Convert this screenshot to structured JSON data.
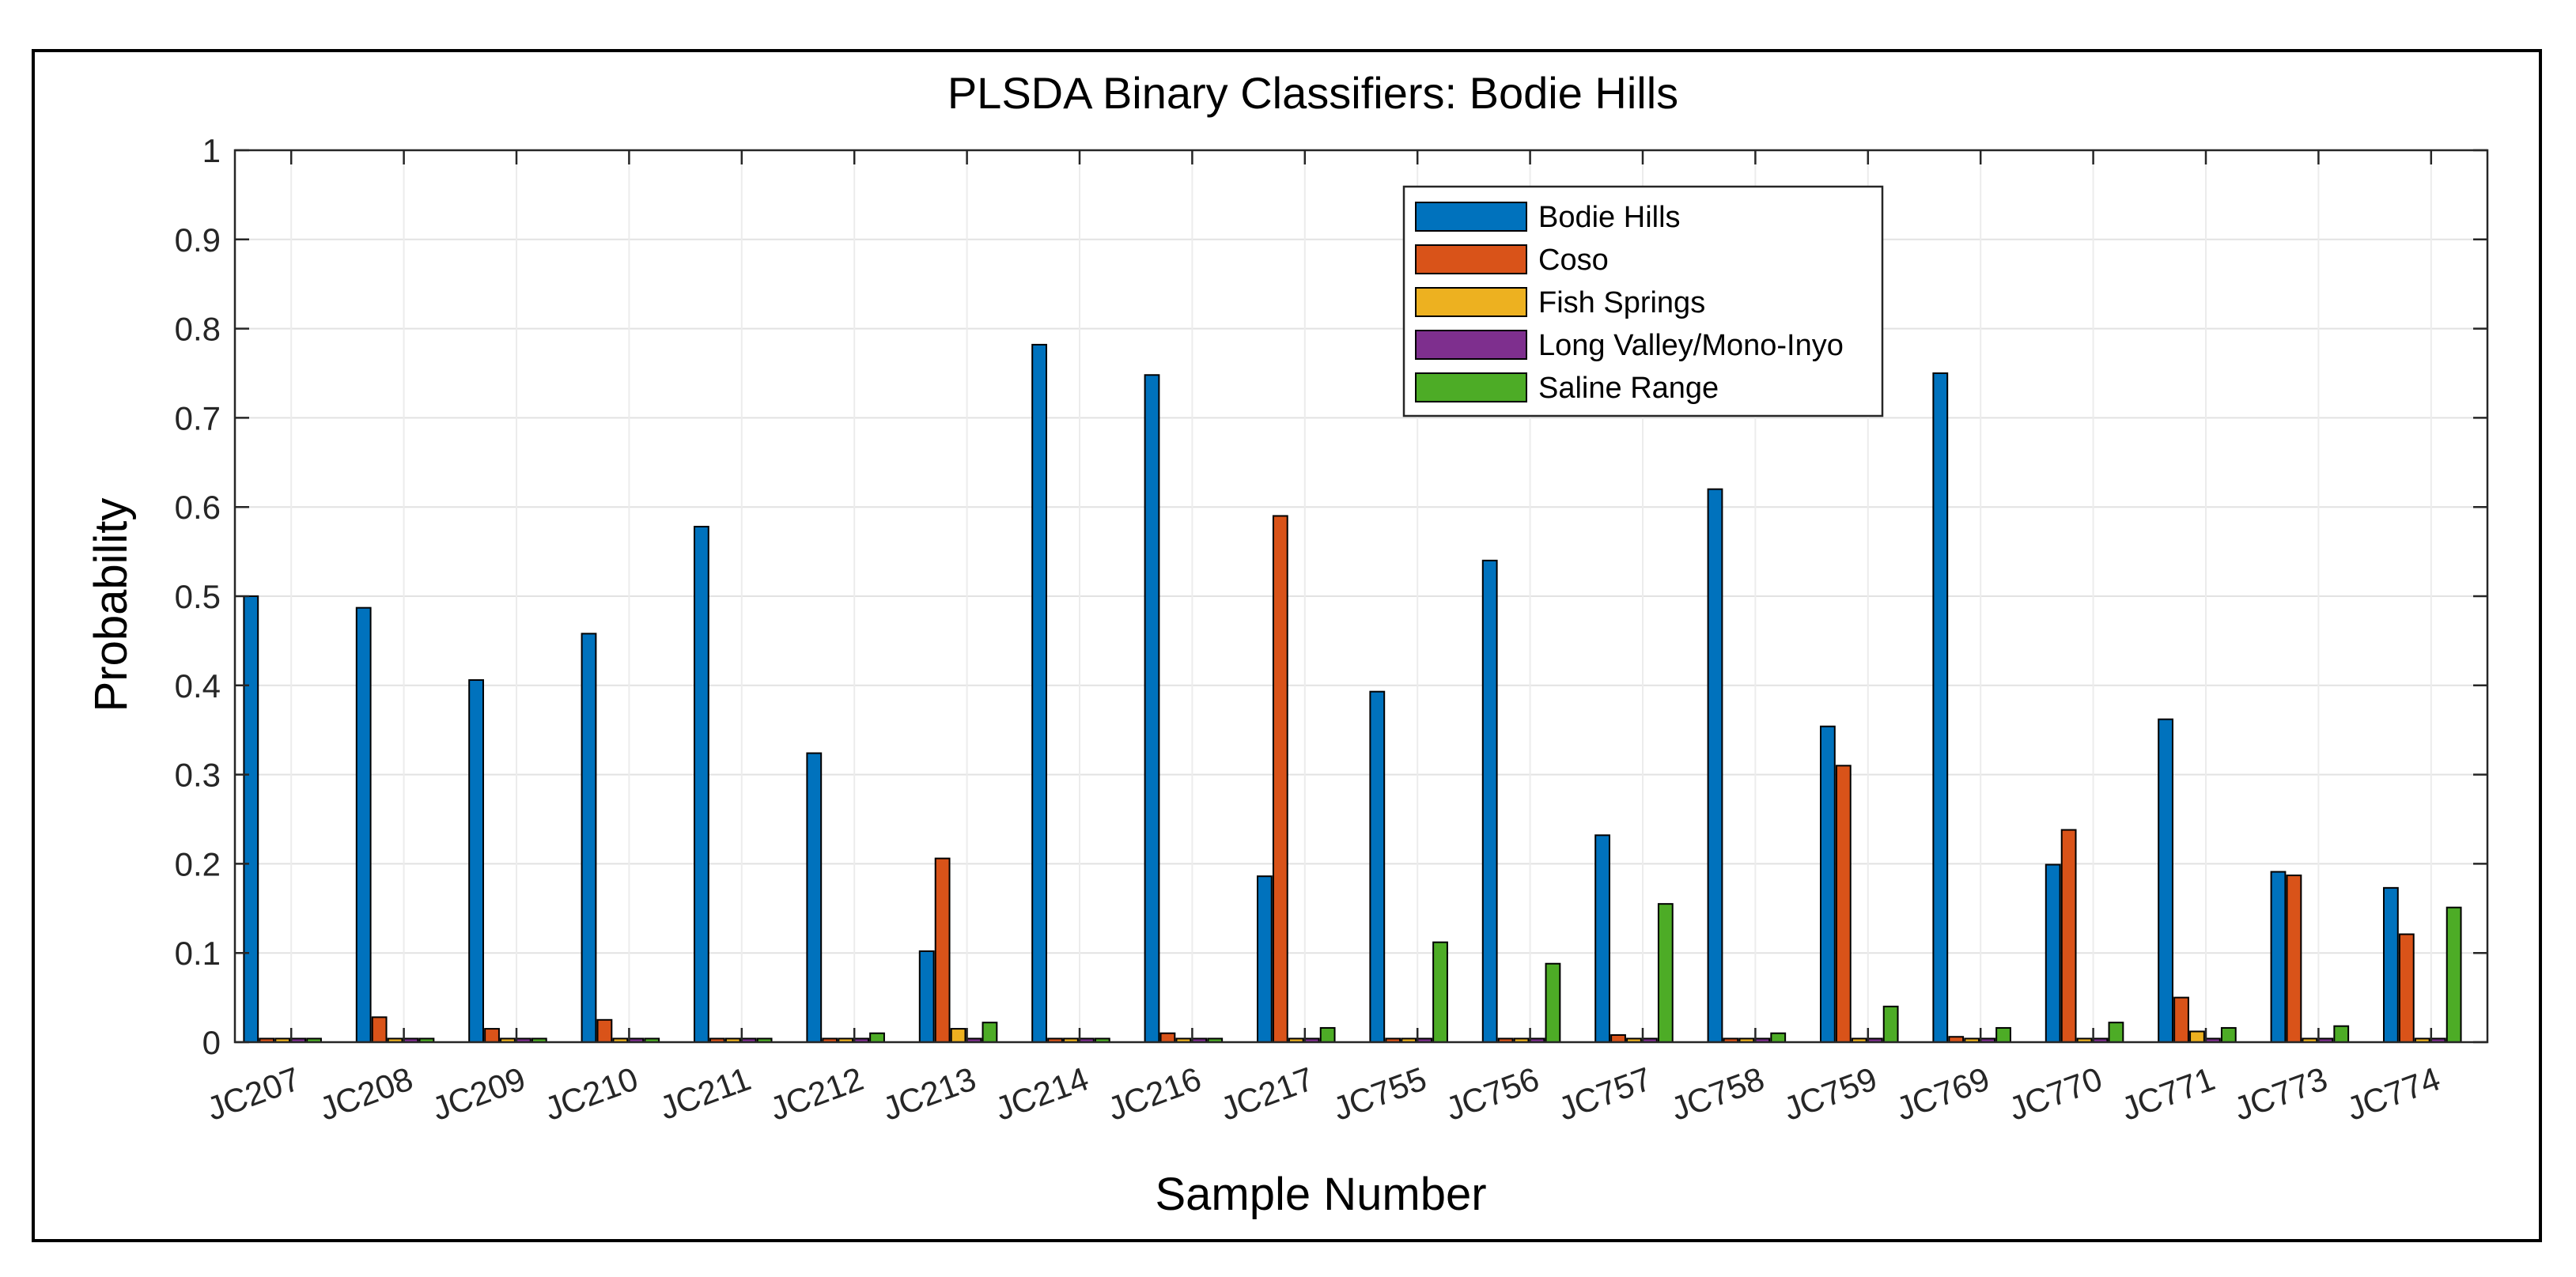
{
  "chart_data": {
    "type": "bar",
    "title": "PLSDA Binary Classifiers: Bodie Hills",
    "xlabel": "Sample Number",
    "ylabel": "Probability",
    "ylim": [
      0,
      1
    ],
    "yticks": [
      "0",
      "0.1",
      "0.2",
      "0.3",
      "0.4",
      "0.5",
      "0.6",
      "0.7",
      "0.8",
      "0.9",
      "1"
    ],
    "grid": true,
    "legend_position": "top-center",
    "categories": [
      "JC207",
      "JC208",
      "JC209",
      "JC210",
      "JC211",
      "JC212",
      "JC213",
      "JC214",
      "JC216",
      "JC217",
      "JC755",
      "JC756",
      "JC757",
      "JC758",
      "JC759",
      "JC769",
      "JC770",
      "JC771",
      "JC773",
      "JC774"
    ],
    "series": [
      {
        "name": "Bodie Hills",
        "color": "#0072BD",
        "values": [
          0.5,
          0.487,
          0.406,
          0.458,
          0.578,
          0.324,
          0.102,
          0.782,
          0.748,
          0.186,
          0.393,
          0.54,
          0.232,
          0.62,
          0.354,
          0.75,
          0.199,
          0.362,
          0.191,
          0.173
        ]
      },
      {
        "name": "Coso",
        "color": "#D95319",
        "values": [
          0.004,
          0.028,
          0.015,
          0.025,
          0.004,
          0.004,
          0.206,
          0.004,
          0.01,
          0.59,
          0.004,
          0.004,
          0.008,
          0.004,
          0.31,
          0.006,
          0.238,
          0.05,
          0.187,
          0.121
        ]
      },
      {
        "name": "Fish Springs",
        "color": "#EDB120",
        "values": [
          0.004,
          0.004,
          0.004,
          0.004,
          0.004,
          0.004,
          0.015,
          0.004,
          0.004,
          0.004,
          0.004,
          0.004,
          0.004,
          0.004,
          0.004,
          0.004,
          0.004,
          0.012,
          0.004,
          0.004
        ]
      },
      {
        "name": "Long Valley/Mono-Inyo",
        "color": "#7E2F8E",
        "values": [
          0.004,
          0.004,
          0.004,
          0.004,
          0.004,
          0.004,
          0.004,
          0.004,
          0.004,
          0.004,
          0.004,
          0.004,
          0.004,
          0.004,
          0.004,
          0.004,
          0.004,
          0.004,
          0.004,
          0.004
        ]
      },
      {
        "name": "Saline Range",
        "color": "#4DAC26",
        "values": [
          0.004,
          0.004,
          0.004,
          0.004,
          0.004,
          0.01,
          0.022,
          0.004,
          0.004,
          0.016,
          0.112,
          0.088,
          0.155,
          0.01,
          0.04,
          0.016,
          0.022,
          0.016,
          0.018,
          0.151
        ]
      }
    ]
  }
}
